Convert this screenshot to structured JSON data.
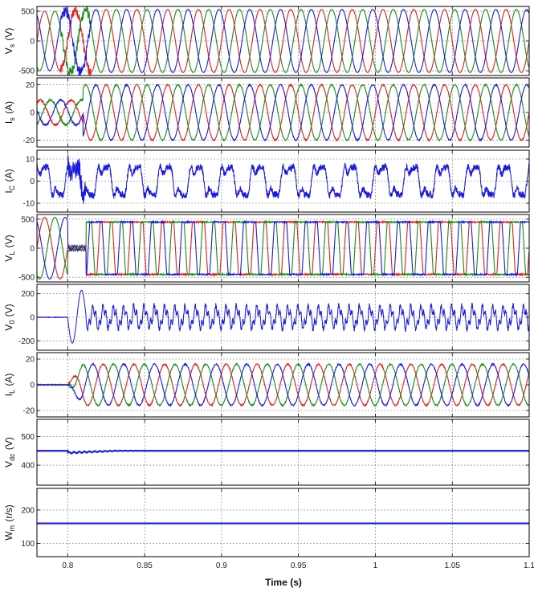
{
  "figure": {
    "xlabel": "Time (s)",
    "x_ticks": [
      0.8,
      0.85,
      0.9,
      0.95,
      1,
      1.05,
      1.1
    ],
    "x_tick_labels": [
      "0.8",
      "0.85",
      "0.9",
      "0.95",
      "1",
      "1.05",
      "1.1"
    ],
    "xlim": [
      0.78,
      1.1
    ]
  },
  "chart_data": [
    {
      "type": "line",
      "ylabel": "V_s (V)",
      "ylabel_main": "V",
      "ylabel_sub": "s",
      "ylabel_unit": "(V)",
      "ylim": [
        -580,
        580
      ],
      "y_ticks": [
        -500,
        0,
        500
      ],
      "y_tick_labels": [
        "-500",
        "0",
        "500"
      ],
      "grid": true,
      "waveform": "three-phase sinusoid",
      "frequency_hz": 50,
      "amplitude_before": 500,
      "amplitude_after": 530,
      "event_time": 0.8,
      "colors": [
        "#e02020",
        "#1a8a1a",
        "#1a1ae0"
      ]
    },
    {
      "type": "line",
      "ylabel": "I_s (A)",
      "ylabel_main": "I",
      "ylabel_sub": "s",
      "ylabel_unit": "(A)",
      "ylim": [
        -25,
        25
      ],
      "y_ticks": [
        -20,
        0,
        20
      ],
      "y_tick_labels": [
        "-20",
        "0",
        "20"
      ],
      "grid": true,
      "waveform": "three-phase sinusoid",
      "frequency_hz": 50,
      "amplitude_before": 9,
      "amplitude_after": 20,
      "event_time": 0.81,
      "colors": [
        "#e02020",
        "#1a8a1a",
        "#1a1ae0"
      ]
    },
    {
      "type": "line",
      "ylabel": "I_C (A)",
      "ylabel_main": "I",
      "ylabel_sub": "C",
      "ylabel_unit": "(A)",
      "ylim": [
        -14,
        14
      ],
      "y_ticks": [
        -10,
        0,
        10
      ],
      "y_tick_labels": [
        "-10",
        "0",
        "10"
      ],
      "grid": true,
      "waveform": "single-phase distorted periodic",
      "frequency_hz": 50,
      "amplitude": 9,
      "colors": [
        "#1a1ae0"
      ]
    },
    {
      "type": "line",
      "ylabel": "V_L (V)",
      "ylabel_main": "V",
      "ylabel_sub": "L",
      "ylabel_unit": "(V)",
      "ylim": [
        -580,
        580
      ],
      "y_ticks": [
        -500,
        0,
        500
      ],
      "y_tick_labels": [
        "-500",
        "0",
        "500"
      ],
      "grid": true,
      "waveform": "three-phase sinusoid then quasi-square",
      "frequency_hz": 50,
      "amplitude_before": 530,
      "amplitude_after": 450,
      "event_time": 0.8,
      "colors": [
        "#e02020",
        "#1a8a1a",
        "#1a1ae0"
      ]
    },
    {
      "type": "line",
      "ylabel": "V_0 (V)",
      "ylabel_main": "V",
      "ylabel_sub": "0",
      "ylabel_unit": "(V)",
      "ylim": [
        -280,
        280
      ],
      "y_ticks": [
        -200,
        0,
        200
      ],
      "y_tick_labels": [
        "-200",
        "0",
        "200"
      ],
      "grid": true,
      "waveform": "zero-sequence ripple",
      "event_time": 0.8,
      "peak_after_event": 230,
      "dip_after_event": -220,
      "amplitude": 160,
      "colors": [
        "#1a1ae0"
      ]
    },
    {
      "type": "line",
      "ylabel": "I_L (A)",
      "ylabel_main": "I",
      "ylabel_sub": "L",
      "ylabel_unit": "(A)",
      "ylim": [
        -25,
        25
      ],
      "y_ticks": [
        -20,
        0,
        20
      ],
      "y_tick_labels": [
        "-20",
        "0",
        "20"
      ],
      "grid": true,
      "waveform": "three-phase sinusoid",
      "frequency_hz": 50,
      "amplitude_before": 0,
      "amplitude_after": 16,
      "event_time": 0.8,
      "colors": [
        "#e02020",
        "#1a8a1a",
        "#1a1ae0"
      ]
    },
    {
      "type": "line",
      "ylabel": "V_dc (V)",
      "ylabel_main": "V",
      "ylabel_sub": "dc",
      "ylabel_unit": "(V)",
      "ylim": [
        330,
        560
      ],
      "y_ticks": [
        400,
        500
      ],
      "y_tick_labels": [
        "400",
        "500"
      ],
      "grid": true,
      "steady_value": 450,
      "dip_value": 443,
      "event_time": 0.8,
      "colors": [
        "#1a1ae0"
      ]
    },
    {
      "type": "line",
      "ylabel": "W_m (r/s)",
      "ylabel_main": "W",
      "ylabel_sub": "m",
      "ylabel_unit": "(r/s)",
      "ylim": [
        60,
        265
      ],
      "y_ticks": [
        100,
        200
      ],
      "y_tick_labels": [
        "100",
        "200"
      ],
      "grid": true,
      "steady_value": 160,
      "colors": [
        "#1a1ae0"
      ]
    }
  ]
}
